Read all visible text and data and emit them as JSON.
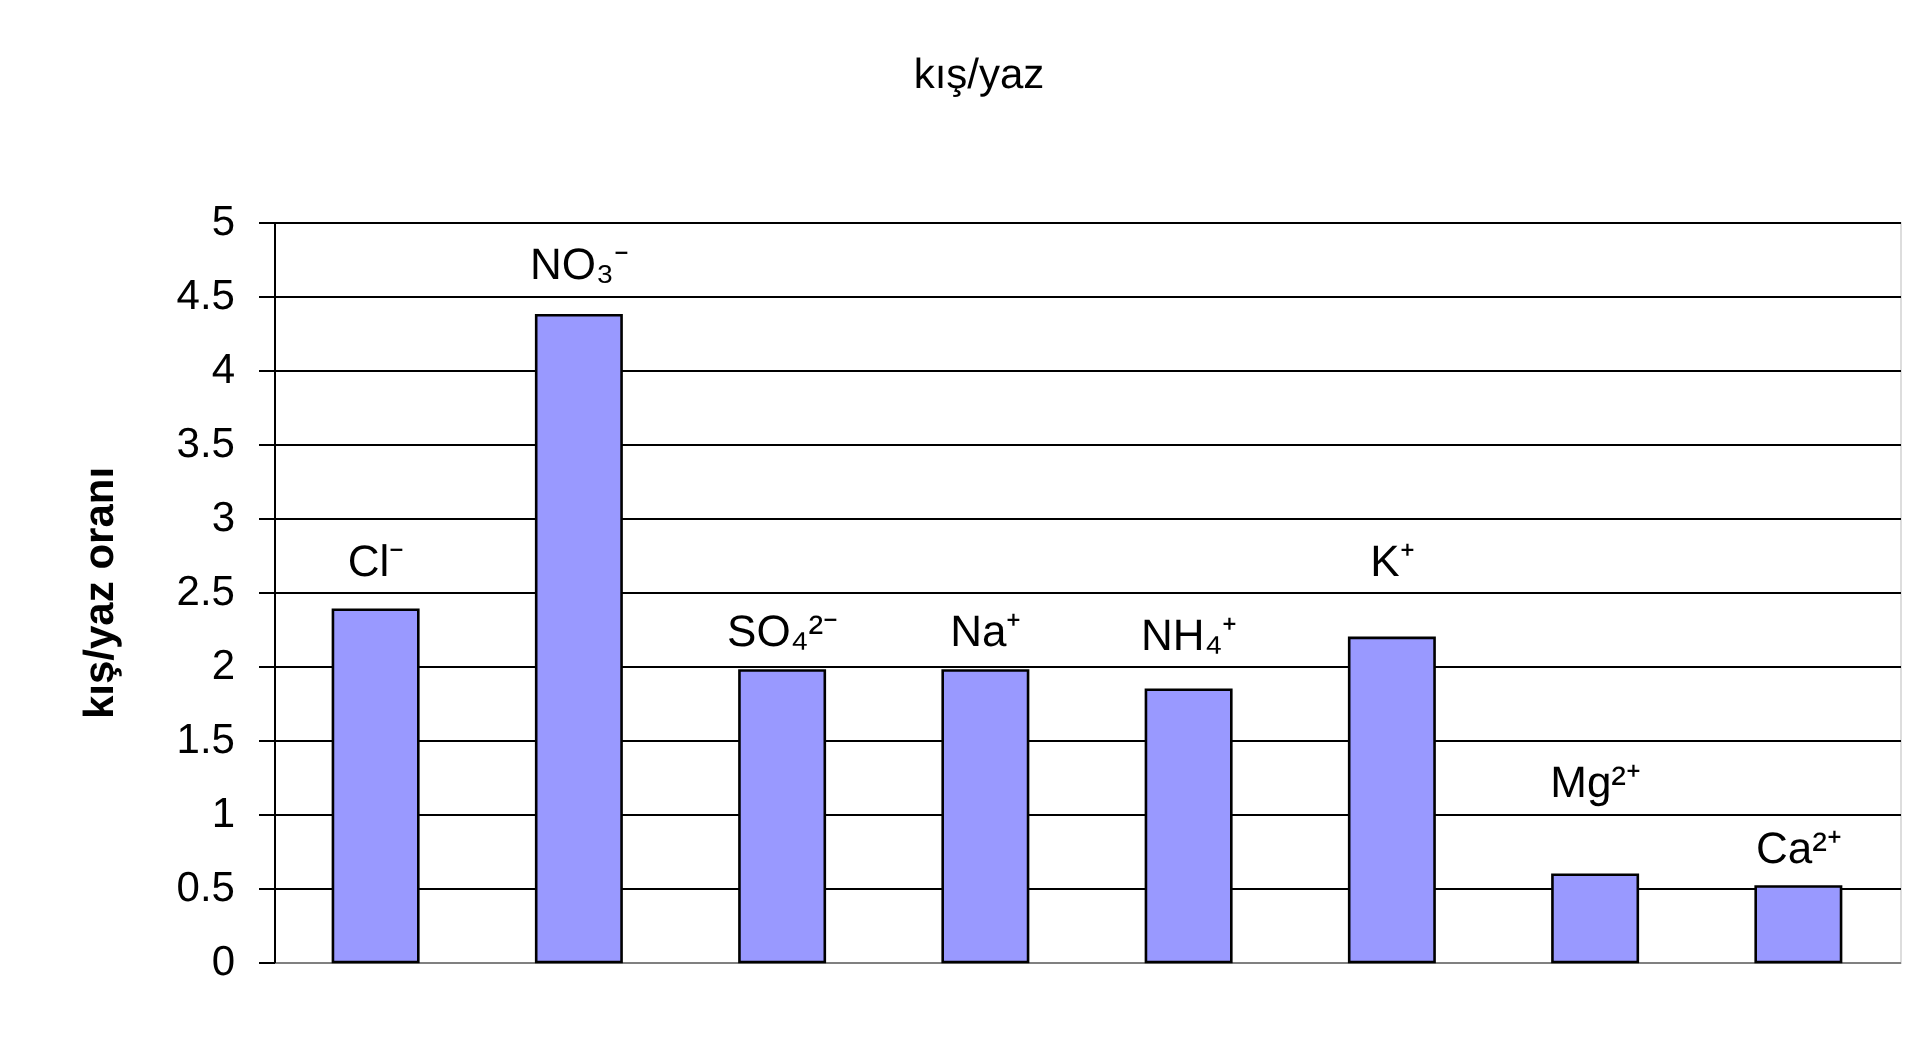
{
  "chart_data": {
    "type": "bar",
    "title": "kış/yaz",
    "ylabel": "kış/yaz oranı",
    "categories": [
      "Cl⁻",
      "NO₃⁻",
      "SO₄²⁻",
      "Na⁺",
      "NH₄⁺",
      "K⁺",
      "Mg²⁺",
      "Ca²⁺"
    ],
    "values": [
      2.38,
      4.37,
      1.97,
      1.97,
      1.84,
      2.19,
      0.59,
      0.51
    ],
    "color": "#9999ff",
    "ylim": [
      0,
      5
    ],
    "yticks": [
      0,
      0.5,
      1,
      1.5,
      2,
      2.5,
      3,
      3.5,
      4,
      4.5,
      5
    ],
    "grid": "y"
  }
}
